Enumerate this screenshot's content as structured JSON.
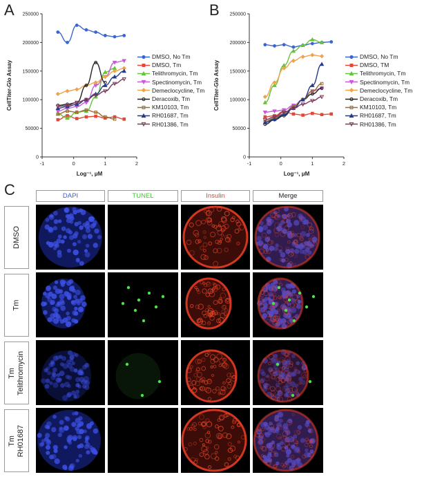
{
  "panels": {
    "a": "A",
    "b": "B",
    "c": "C"
  },
  "legend": [
    {
      "label": "DMSO, No Tm",
      "color": "#3a66d0",
      "marker": "circle"
    },
    {
      "label": "DMSO, Tm",
      "color": "#e0493a",
      "marker": "square"
    },
    {
      "label": "Telithromycin, Tm",
      "color": "#66c23a",
      "marker": "triangle"
    },
    {
      "label": "Spectinomycin, Tm",
      "color": "#c65bd8",
      "marker": "triangle-down"
    },
    {
      "label": "Demeclocycline, Tm",
      "color": "#f0a24a",
      "marker": "diamond"
    },
    {
      "label": "Deracoxib, Tm",
      "color": "#222222",
      "marker": "circle-open"
    },
    {
      "label": "KM10103, Tm",
      "color": "#9b6a2e",
      "marker": "square-open"
    },
    {
      "label": "RH01687, Tm",
      "color": "#243a8a",
      "marker": "triangle"
    },
    {
      "label": "RH01386, Tm",
      "color": "#7a3a5a",
      "marker": "triangle-down-open"
    }
  ],
  "legend_b": [
    {
      "label": "DMSO, No Tm",
      "color": "#3a66d0",
      "marker": "circle"
    },
    {
      "label": "DMSO, TM",
      "color": "#e0493a",
      "marker": "square"
    },
    {
      "label": "Telithromycin, Tm",
      "color": "#66c23a",
      "marker": "triangle"
    },
    {
      "label": "Spectinomycin, Tm",
      "color": "#c65bd8",
      "marker": "triangle-down"
    },
    {
      "label": "Demeclocycline, Tm",
      "color": "#f0a24a",
      "marker": "diamond"
    },
    {
      "label": "Deracoxib, Tm",
      "color": "#222222",
      "marker": "circle-open"
    },
    {
      "label": "KM10103, Tm",
      "color": "#9b6a2e",
      "marker": "square-open"
    },
    {
      "label": "RH01687, Tm",
      "color": "#243a8a",
      "marker": "triangle"
    },
    {
      "label": "RH01386, Tm",
      "color": "#7a3a5a",
      "marker": "triangle-down-open"
    }
  ],
  "chart_data": [
    {
      "type": "scatter",
      "panel": "A",
      "xlabel": "Log⁻¹, μM",
      "ylabel": "CellTiter-Glo Assay",
      "xlim": [
        -1,
        2
      ],
      "ylim": [
        0,
        250000
      ],
      "xticks": [
        -1,
        0,
        1,
        2
      ],
      "yticks": [
        0,
        50000,
        100000,
        150000,
        200000,
        250000
      ],
      "ytick_labels": [
        "0",
        "50000",
        "100000",
        "150000",
        "200000",
        "250000"
      ],
      "series": [
        {
          "name": "DMSO, No Tm",
          "x": [
            -0.5,
            -0.2,
            0.1,
            0.4,
            0.7,
            1.0,
            1.3,
            1.6
          ],
          "y": [
            218000,
            200000,
            230000,
            222000,
            218000,
            212000,
            210000,
            212000
          ]
        },
        {
          "name": "DMSO, Tm",
          "x": [
            -0.5,
            -0.2,
            0.1,
            0.4,
            0.7,
            1.0,
            1.3,
            1.6
          ],
          "y": [
            65000,
            72000,
            67000,
            70000,
            71000,
            68000,
            70000,
            66000
          ]
        },
        {
          "name": "Telithromycin, Tm",
          "x": [
            -0.5,
            -0.2,
            0.1,
            0.4,
            0.7,
            1.0,
            1.3
          ],
          "y": [
            75000,
            68000,
            78000,
            80000,
            105000,
            148000,
            155000
          ]
        },
        {
          "name": "Spectinomycin, Tm",
          "x": [
            -0.5,
            -0.2,
            0.1,
            0.4,
            0.7,
            1.0,
            1.3,
            1.6
          ],
          "y": [
            80000,
            85000,
            88000,
            95000,
            125000,
            140000,
            165000,
            168000
          ]
        },
        {
          "name": "Demeclocycline, Tm",
          "x": [
            -0.5,
            -0.2,
            0.1,
            0.4,
            0.7,
            1.0,
            1.3,
            1.6
          ],
          "y": [
            110000,
            115000,
            118000,
            125000,
            130000,
            140000,
            150000,
            155000
          ]
        },
        {
          "name": "Deracoxib, Tm",
          "x": [
            -0.5,
            -0.2,
            0.1,
            0.4,
            0.7,
            1.0
          ],
          "y": [
            90000,
            92000,
            95000,
            125000,
            165000,
            130000
          ]
        },
        {
          "name": "KM10103, Tm",
          "x": [
            -0.5,
            -0.2,
            0.1,
            0.4,
            0.7,
            1.0,
            1.3
          ],
          "y": [
            75000,
            80000,
            78000,
            82000,
            78000,
            70000,
            66000
          ]
        },
        {
          "name": "RH01687, Tm",
          "x": [
            -0.5,
            -0.2,
            0.1,
            0.4,
            0.7,
            1.0,
            1.3,
            1.6
          ],
          "y": [
            85000,
            88000,
            92000,
            100000,
            110000,
            125000,
            140000,
            150000
          ]
        },
        {
          "name": "RH01386, Tm",
          "x": [
            -0.5,
            -0.2,
            0.1,
            0.4,
            0.7,
            1.0,
            1.3,
            1.6
          ],
          "y": [
            88000,
            90000,
            95000,
            100000,
            108000,
            115000,
            128000,
            136000
          ]
        }
      ]
    },
    {
      "type": "scatter",
      "panel": "B",
      "xlabel": "Log⁻¹, μM",
      "ylabel": "CellTiter-Glo Assay",
      "xlim": [
        -1,
        2
      ],
      "ylim": [
        0,
        250000
      ],
      "xticks": [
        -1,
        0,
        1,
        2
      ],
      "yticks": [
        0,
        50000,
        100000,
        150000,
        200000,
        250000
      ],
      "ytick_labels": [
        "0",
        "50000",
        "100000",
        "150000",
        "200000",
        "250000"
      ],
      "series": [
        {
          "name": "DMSO, No Tm",
          "x": [
            -0.5,
            -0.2,
            0.1,
            0.4,
            0.7,
            1.0,
            1.3,
            1.6
          ],
          "y": [
            196000,
            194000,
            196000,
            192000,
            195000,
            198000,
            200000,
            201000
          ]
        },
        {
          "name": "DMSO, TM",
          "x": [
            -0.5,
            -0.2,
            0.1,
            0.4,
            0.7,
            1.0,
            1.3,
            1.6
          ],
          "y": [
            70000,
            72000,
            80000,
            75000,
            73000,
            76000,
            74000,
            75000
          ]
        },
        {
          "name": "Telithromycin, Tm",
          "x": [
            -0.5,
            -0.2,
            0.1,
            0.4,
            0.7,
            1.0,
            1.3
          ],
          "y": [
            95000,
            125000,
            160000,
            185000,
            195000,
            205000,
            200000
          ]
        },
        {
          "name": "Spectinomycin, Tm",
          "x": [
            -0.5,
            -0.2,
            0.1,
            0.4,
            0.7,
            1.0,
            1.3
          ],
          "y": [
            78000,
            80000,
            82000,
            90000,
            100000,
            115000,
            120000
          ]
        },
        {
          "name": "Demeclocycline, Tm",
          "x": [
            -0.5,
            -0.2,
            0.1,
            0.4,
            0.7,
            1.0,
            1.3
          ],
          "y": [
            105000,
            130000,
            155000,
            168000,
            175000,
            178000,
            176000
          ]
        },
        {
          "name": "Deracoxib, Tm",
          "x": [
            -0.5,
            -0.2,
            0.1,
            0.4,
            0.7,
            1.0,
            1.3
          ],
          "y": [
            57000,
            65000,
            72000,
            85000,
            100000,
            110000,
            120000
          ]
        },
        {
          "name": "KM10103, Tm",
          "x": [
            -0.5,
            -0.2,
            0.1,
            0.4,
            0.7,
            1.0,
            1.3
          ],
          "y": [
            62000,
            68000,
            75000,
            88000,
            100000,
            115000,
            128000
          ]
        },
        {
          "name": "RH01687, Tm",
          "x": [
            -0.5,
            -0.2,
            0.1,
            0.4,
            0.7,
            1.0,
            1.3
          ],
          "y": [
            60000,
            66000,
            74000,
            85000,
            100000,
            125000,
            162000
          ]
        },
        {
          "name": "RH01386, Tm",
          "x": [
            -0.5,
            -0.2,
            0.1,
            0.4,
            0.7,
            1.0,
            1.3
          ],
          "y": [
            65000,
            70000,
            78000,
            85000,
            92000,
            98000,
            105000
          ]
        }
      ]
    }
  ],
  "micrograph": {
    "columns": [
      {
        "label": "DAPI",
        "color": "#3b5bd8"
      },
      {
        "label": "TUNEL",
        "color": "#48c23a"
      },
      {
        "label": "Insulin",
        "color": "#e0452e"
      },
      {
        "label": "Merge",
        "color": "#222222"
      }
    ],
    "rows": [
      {
        "label_lines": [
          "DMSO"
        ]
      },
      {
        "label_lines": [
          "Tm"
        ]
      },
      {
        "label_lines": [
          "Tm",
          "Telithromycin"
        ]
      },
      {
        "label_lines": [
          "Tm",
          "RH01687"
        ]
      }
    ]
  }
}
